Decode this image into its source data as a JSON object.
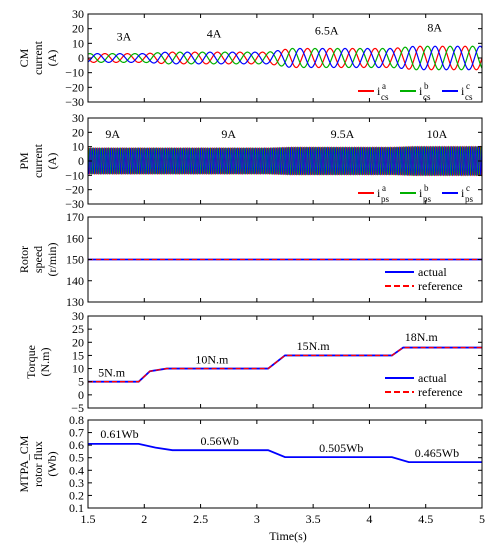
{
  "figure": {
    "xlabel": "Time(s)",
    "xticks": [
      "1.5",
      "2",
      "2.5",
      "3",
      "3.5",
      "4",
      "4.5",
      "5"
    ]
  },
  "colors": {
    "phase_a": "#ff0000",
    "phase_b": "#00b000",
    "phase_c": "#0000ff",
    "actual": "#0000ff",
    "reference": "#ff0000",
    "flux": "#0000ff"
  },
  "chart_data": [
    {
      "type": "line",
      "ylabel_lines": [
        "CM",
        "current",
        "(A)"
      ],
      "xlim": [
        1.5,
        5
      ],
      "ylim": [
        -30,
        30
      ],
      "yticks": [
        "30",
        "20",
        "10",
        "0",
        "−10",
        "−20",
        "−30"
      ],
      "grid": false,
      "legend": "bottom-right",
      "legend_entries": [
        {
          "base": "i",
          "sub": "cs",
          "sup": "a",
          "color": "#ff0000"
        },
        {
          "base": "i",
          "sub": "cs",
          "sup": "b",
          "color": "#00b000"
        },
        {
          "base": "i",
          "sub": "cs",
          "sup": "c",
          "color": "#0000ff"
        }
      ],
      "series": [
        {
          "phase": "a",
          "frequency_hz": 5
        },
        {
          "phase": "b",
          "frequency_hz": 5
        },
        {
          "phase": "c",
          "frequency_hz": 5
        }
      ],
      "envelope": {
        "t": [
          1.5,
          2.0,
          2.2,
          3.1,
          3.3,
          4.2,
          4.4,
          5.0
        ],
        "amplitude": [
          3,
          3,
          4,
          4,
          6.5,
          6.5,
          8,
          8
        ]
      },
      "annotations": [
        {
          "text": "3A",
          "x": 1.82,
          "y": 12
        },
        {
          "text": "4A",
          "x": 2.62,
          "y": 14
        },
        {
          "text": "6.5A",
          "x": 3.62,
          "y": 16
        },
        {
          "text": "8A",
          "x": 4.58,
          "y": 18
        }
      ]
    },
    {
      "type": "line",
      "ylabel_lines": [
        "PM",
        "current",
        "(A)"
      ],
      "xlim": [
        1.5,
        5
      ],
      "ylim": [
        -30,
        30
      ],
      "yticks": [
        "30",
        "20",
        "10",
        "0",
        "−10",
        "−20",
        "−30"
      ],
      "grid": false,
      "legend": "bottom-right",
      "legend_entries": [
        {
          "base": "i",
          "sub": "ps",
          "sup": "a",
          "color": "#ff0000"
        },
        {
          "base": "i",
          "sub": "ps",
          "sup": "b",
          "color": "#00b000"
        },
        {
          "base": "i",
          "sub": "ps",
          "sup": "c",
          "color": "#0000ff"
        }
      ],
      "series": [
        {
          "phase": "a",
          "frequency_hz": 50
        },
        {
          "phase": "b",
          "frequency_hz": 50
        },
        {
          "phase": "c",
          "frequency_hz": 50
        }
      ],
      "envelope": {
        "t": [
          1.5,
          3.1,
          3.3,
          4.2,
          4.4,
          5.0
        ],
        "amplitude": [
          9,
          9,
          9.5,
          9.5,
          10,
          10
        ]
      },
      "annotations": [
        {
          "text": "9A",
          "x": 1.72,
          "y": 16
        },
        {
          "text": "9A",
          "x": 2.75,
          "y": 16
        },
        {
          "text": "9.5A",
          "x": 3.76,
          "y": 16
        },
        {
          "text": "10A",
          "x": 4.6,
          "y": 16
        }
      ]
    },
    {
      "type": "line",
      "ylabel_lines": [
        "Rotor",
        "speed",
        "(r/min)"
      ],
      "xlim": [
        1.5,
        5
      ],
      "ylim": [
        125,
        175
      ],
      "yticks": [
        "170",
        "160",
        "150",
        "140",
        "130"
      ],
      "grid": false,
      "legend": "bottom-right",
      "legend_entries": [
        {
          "label": "actual",
          "color": "#0000ff",
          "dash": false
        },
        {
          "label": "reference",
          "color": "#ff0000",
          "dash": true
        }
      ],
      "series": [
        {
          "name": "actual",
          "x": [
            1.5,
            5.0
          ],
          "y": [
            150,
            150
          ]
        },
        {
          "name": "reference",
          "x": [
            1.5,
            5.0
          ],
          "y": [
            150,
            150
          ]
        }
      ],
      "annotations": []
    },
    {
      "type": "line",
      "ylabel_lines": [
        "Torque",
        "(N.m)"
      ],
      "xlim": [
        1.5,
        5
      ],
      "ylim": [
        -5,
        30
      ],
      "yticks": [
        "30",
        "25",
        "20",
        "15",
        "10",
        "5",
        "0",
        "−5"
      ],
      "grid": false,
      "legend": "bottom-right",
      "legend_entries": [
        {
          "label": "actual",
          "color": "#0000ff",
          "dash": false
        },
        {
          "label": "reference",
          "color": "#ff0000",
          "dash": true
        }
      ],
      "series": [
        {
          "name": "actual",
          "x": [
            1.5,
            1.95,
            2.05,
            2.2,
            3.1,
            3.25,
            4.2,
            4.3,
            5.0
          ],
          "y": [
            5,
            5,
            9,
            10,
            10,
            15,
            15,
            18,
            18
          ]
        },
        {
          "name": "reference",
          "x": [
            1.5,
            1.95,
            2.05,
            2.2,
            3.1,
            3.25,
            4.2,
            4.3,
            5.0
          ],
          "y": [
            5,
            5,
            9,
            10,
            10,
            15,
            15,
            18,
            18
          ]
        }
      ],
      "annotations": [
        {
          "text": "5N.m",
          "x": 1.71,
          "y": 7
        },
        {
          "text": "10N.m",
          "x": 2.6,
          "y": 12
        },
        {
          "text": "15N.m",
          "x": 3.5,
          "y": 17
        },
        {
          "text": "18N.m",
          "x": 4.46,
          "y": 20.5
        }
      ]
    },
    {
      "type": "line",
      "ylabel_lines": [
        "MTPA_CM",
        "rotor flux",
        "(Wb)"
      ],
      "xlim": [
        1.5,
        5
      ],
      "ylim": [
        0.1,
        0.8
      ],
      "yticks": [
        "0.8",
        "0.7",
        "0.6",
        "0.5",
        "0.4",
        "0.3",
        "0.2",
        "0.1"
      ],
      "grid": false,
      "legend": "none",
      "series": [
        {
          "name": "flux",
          "x": [
            1.5,
            1.95,
            2.1,
            2.25,
            3.1,
            3.25,
            4.2,
            4.35,
            5.0
          ],
          "y": [
            0.61,
            0.61,
            0.58,
            0.56,
            0.56,
            0.505,
            0.505,
            0.465,
            0.465
          ]
        }
      ],
      "annotations": [
        {
          "text": "0.61Wb",
          "x": 1.78,
          "y": 0.655
        },
        {
          "text": "0.56Wb",
          "x": 2.67,
          "y": 0.6
        },
        {
          "text": "0.505Wb",
          "x": 3.75,
          "y": 0.545
        },
        {
          "text": "0.465Wb",
          "x": 4.6,
          "y": 0.505
        }
      ]
    }
  ]
}
